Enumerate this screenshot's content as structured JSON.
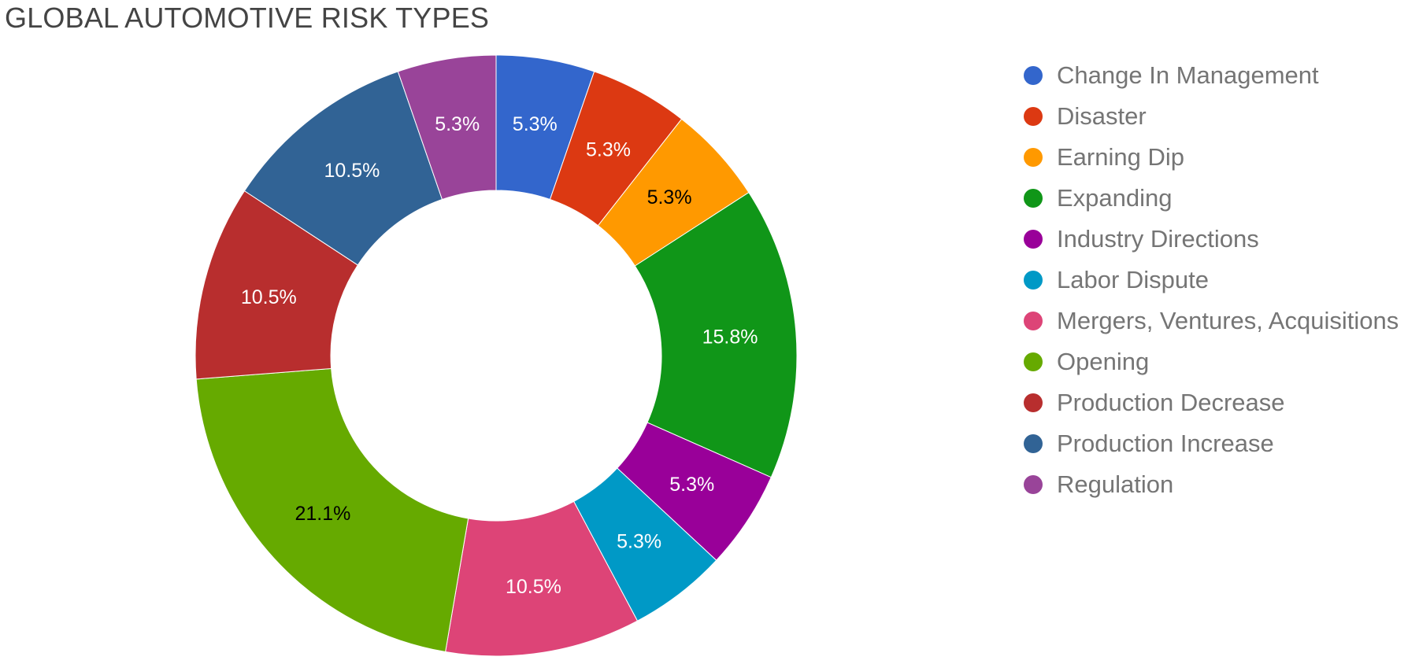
{
  "chart_data": {
    "type": "pie",
    "donut": true,
    "title": "GLOBAL AUTOMOTIVE RISK TYPES",
    "legend_position": "right",
    "slices": [
      {
        "label": "Change In Management",
        "value": 5.3,
        "display": "5.3%",
        "color": "#3366cc",
        "text_color": "#ffffff"
      },
      {
        "label": "Disaster",
        "value": 5.3,
        "display": "5.3%",
        "color": "#dc3912",
        "text_color": "#ffffff"
      },
      {
        "label": "Earning Dip",
        "value": 5.3,
        "display": "5.3%",
        "color": "#ff9900",
        "text_color": "#000000"
      },
      {
        "label": "Expanding",
        "value": 15.8,
        "display": "15.8%",
        "color": "#109618",
        "text_color": "#ffffff"
      },
      {
        "label": "Industry Directions",
        "value": 5.3,
        "display": "5.3%",
        "color": "#990099",
        "text_color": "#ffffff"
      },
      {
        "label": "Labor Dispute",
        "value": 5.3,
        "display": "5.3%",
        "color": "#0099c6",
        "text_color": "#ffffff"
      },
      {
        "label": "Mergers, Ventures, Acquisitions",
        "value": 10.5,
        "display": "10.5%",
        "color": "#dd4477",
        "text_color": "#ffffff"
      },
      {
        "label": "Opening",
        "value": 21.1,
        "display": "21.1%",
        "color": "#66aa00",
        "text_color": "#000000"
      },
      {
        "label": "Production Decrease",
        "value": 10.5,
        "display": "10.5%",
        "color": "#b82e2e",
        "text_color": "#ffffff"
      },
      {
        "label": "Production Increase",
        "value": 10.5,
        "display": "10.5%",
        "color": "#316395",
        "text_color": "#ffffff"
      },
      {
        "label": "Regulation",
        "value": 5.3,
        "display": "5.3%",
        "color": "#994499",
        "text_color": "#ffffff"
      }
    ]
  }
}
